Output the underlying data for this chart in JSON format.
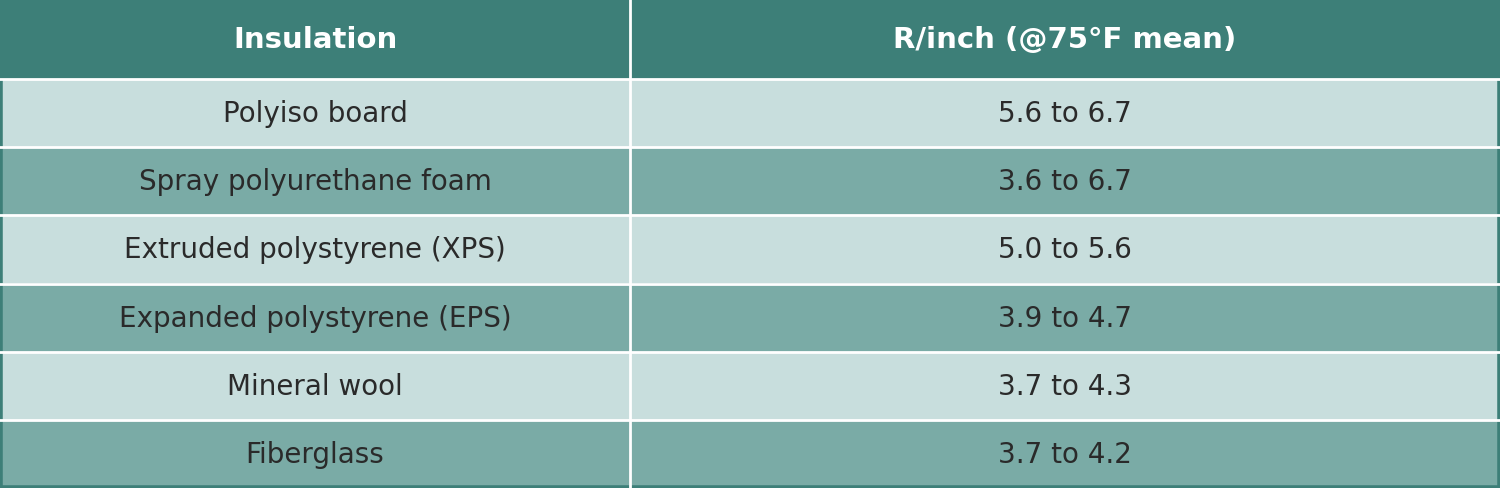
{
  "header": [
    "Insulation",
    "R/inch (@75°F mean)"
  ],
  "rows": [
    [
      "Polyiso board",
      "5.6 to 6.7"
    ],
    [
      "Spray polyurethane foam",
      "3.6 to 6.7"
    ],
    [
      "Extruded polystyrene (XPS)",
      "5.0 to 5.6"
    ],
    [
      "Expanded polystyrene (EPS)",
      "3.9 to 4.7"
    ],
    [
      "Mineral wool",
      "3.7 to 4.3"
    ],
    [
      "Fiberglass",
      "3.7 to 4.2"
    ]
  ],
  "header_bg": "#3d7f78",
  "header_text_color": "#ffffff",
  "row_text_color": "#2a2a2a",
  "row_bg_colors": [
    "#c8dedd",
    "#7aaba6",
    "#c8dedd",
    "#7aaba6",
    "#c8dedd",
    "#7aaba6"
  ],
  "col_split": 0.42,
  "figsize": [
    15.0,
    4.89
  ],
  "dpi": 100,
  "header_fontsize": 21,
  "row_fontsize": 20,
  "divider_color": "#ffffff",
  "divider_lw": 2.0,
  "outer_border_color": "#3d7f78",
  "outer_border_lw": 4
}
